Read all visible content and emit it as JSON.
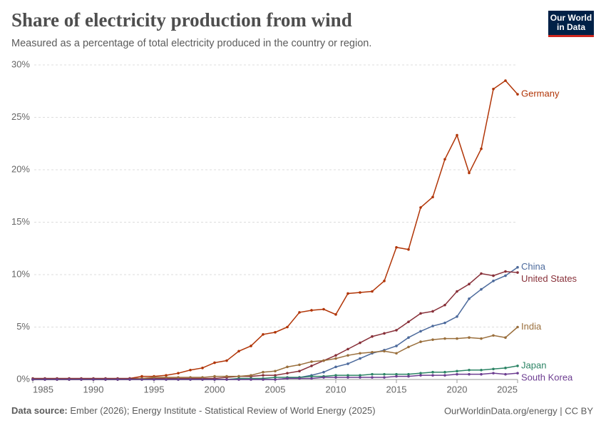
{
  "chart_data": {
    "type": "line",
    "title": "Share of electricity production from wind",
    "subtitle": "Measured as a percentage of total electricity produced in the country or region.",
    "logo": [
      "Our World",
      "in Data"
    ],
    "source_label": "Data source:",
    "source_text": "Ember (2026); Energy Institute - Statistical Review of World Energy (2025)",
    "footer_right": "OurWorldinData.org/energy | CC BY",
    "x": [
      1985,
      1986,
      1987,
      1988,
      1989,
      1990,
      1991,
      1992,
      1993,
      1994,
      1995,
      1996,
      1997,
      1998,
      1999,
      2000,
      2001,
      2002,
      2003,
      2004,
      2005,
      2006,
      2007,
      2008,
      2009,
      2010,
      2011,
      2012,
      2013,
      2014,
      2015,
      2016,
      2017,
      2018,
      2019,
      2020,
      2021,
      2022,
      2023,
      2024,
      2025
    ],
    "xlim": [
      1985,
      2025
    ],
    "xticks": [
      1985,
      1990,
      1995,
      2000,
      2005,
      2010,
      2015,
      2020,
      2025
    ],
    "ylim": [
      0,
      30
    ],
    "yticks": [
      {
        "value": 0,
        "label": "0%"
      },
      {
        "value": 5,
        "label": "5%"
      },
      {
        "value": 10,
        "label": "10%"
      },
      {
        "value": 15,
        "label": "15%"
      },
      {
        "value": 20,
        "label": "20%"
      },
      {
        "value": 25,
        "label": "25%"
      },
      {
        "value": 30,
        "label": "30%"
      }
    ],
    "grid": true,
    "series": [
      {
        "name": "Germany",
        "color": "#b13507",
        "values": [
          0,
          0,
          0,
          0,
          0,
          0,
          0,
          0,
          0.1,
          0.3,
          0.3,
          0.4,
          0.6,
          0.9,
          1.1,
          1.6,
          1.8,
          2.7,
          3.2,
          4.3,
          4.5,
          5.0,
          6.4,
          6.6,
          6.7,
          6.2,
          8.2,
          8.3,
          8.4,
          9.4,
          12.6,
          12.4,
          16.4,
          17.4,
          21.0,
          23.3,
          19.7,
          22.0,
          27.7,
          28.5,
          27.2
        ]
      },
      {
        "name": "China",
        "color": "#4c6a9c",
        "values": [
          0,
          0,
          0,
          0,
          0,
          0,
          0,
          0,
          0,
          0,
          0,
          0,
          0,
          0,
          0,
          0,
          0,
          0,
          0,
          0,
          0,
          0.1,
          0.2,
          0.4,
          0.7,
          1.2,
          1.5,
          2.0,
          2.5,
          2.8,
          3.2,
          4.0,
          4.6,
          5.1,
          5.4,
          6.0,
          7.7,
          8.6,
          9.4,
          9.9,
          10.7
        ]
      },
      {
        "name": "United States",
        "color": "#883039",
        "values": [
          0.1,
          0.1,
          0.1,
          0.1,
          0.1,
          0.1,
          0.1,
          0.1,
          0.1,
          0.1,
          0.1,
          0.1,
          0.1,
          0.1,
          0.1,
          0.1,
          0.2,
          0.3,
          0.3,
          0.4,
          0.4,
          0.6,
          0.8,
          1.3,
          1.8,
          2.3,
          2.9,
          3.5,
          4.1,
          4.4,
          4.7,
          5.5,
          6.3,
          6.5,
          7.1,
          8.4,
          9.1,
          10.1,
          9.9,
          10.3,
          10.2
        ]
      },
      {
        "name": "India",
        "color": "#9a6f3c",
        "values": [
          0,
          0,
          0,
          0,
          0,
          0,
          0,
          0,
          0,
          0.1,
          0.2,
          0.2,
          0.2,
          0.2,
          0.2,
          0.3,
          0.3,
          0.3,
          0.4,
          0.7,
          0.8,
          1.2,
          1.4,
          1.7,
          1.8,
          2.0,
          2.3,
          2.5,
          2.6,
          2.7,
          2.5,
          3.1,
          3.6,
          3.8,
          3.9,
          3.9,
          4.0,
          3.9,
          4.2,
          4.0,
          5.0
        ]
      },
      {
        "name": "Japan",
        "color": "#2c8465",
        "values": [
          0,
          0,
          0,
          0,
          0,
          0,
          0,
          0,
          0,
          0,
          0,
          0,
          0,
          0,
          0,
          0,
          0,
          0.1,
          0.1,
          0.1,
          0.2,
          0.2,
          0.2,
          0.3,
          0.3,
          0.4,
          0.4,
          0.4,
          0.5,
          0.5,
          0.5,
          0.5,
          0.6,
          0.7,
          0.7,
          0.8,
          0.9,
          0.9,
          1.0,
          1.1,
          1.3
        ]
      },
      {
        "name": "South Korea",
        "color": "#6d3e91",
        "values": [
          0,
          0,
          0,
          0,
          0,
          0,
          0,
          0,
          0,
          0,
          0,
          0,
          0,
          0,
          0,
          0,
          0,
          0,
          0,
          0,
          0,
          0.1,
          0.1,
          0.1,
          0.2,
          0.2,
          0.2,
          0.2,
          0.2,
          0.2,
          0.3,
          0.3,
          0.4,
          0.4,
          0.4,
          0.5,
          0.5,
          0.5,
          0.6,
          0.5,
          0.6
        ]
      }
    ]
  }
}
